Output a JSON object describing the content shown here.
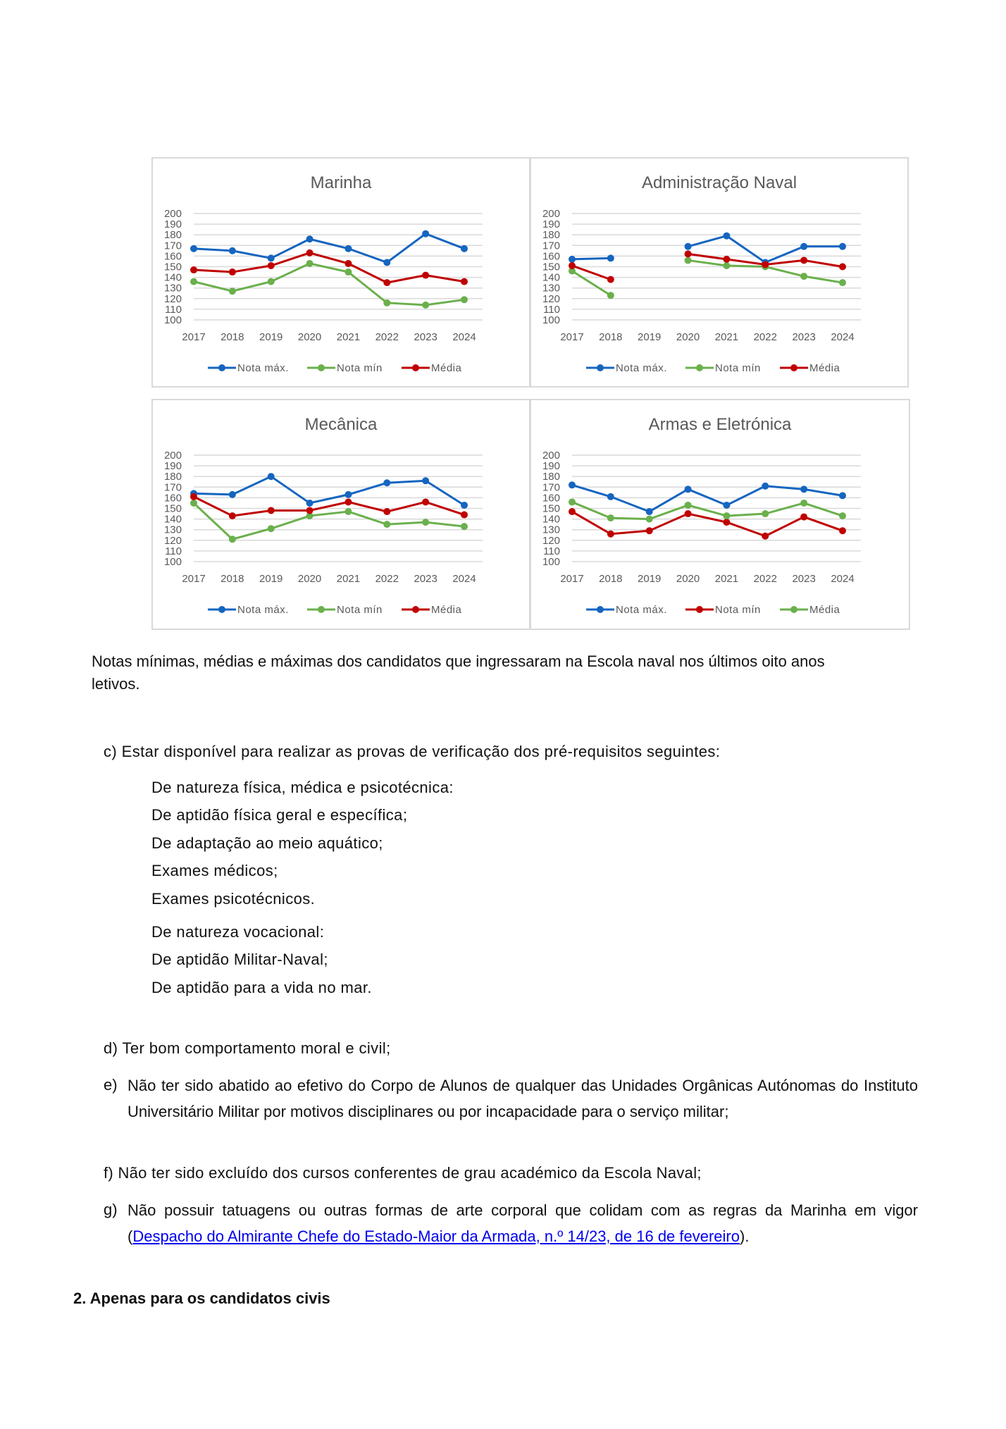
{
  "chart_data": [
    {
      "type": "line",
      "title": "Marinha",
      "categories": [
        "2017",
        "2018",
        "2019",
        "2020",
        "2021",
        "2022",
        "2023",
        "2024"
      ],
      "ylim": [
        100,
        200
      ],
      "yticks": [
        "200",
        "190",
        "180",
        "170",
        "160",
        "150",
        "140",
        "130",
        "120",
        "110",
        "100"
      ],
      "grid": true,
      "legend": "bottom",
      "series": [
        {
          "name": "Nota máx.",
          "color": "#1565c0",
          "values": [
            167,
            165,
            158,
            176,
            167,
            154,
            181,
            167
          ]
        },
        {
          "name": "Nota mín",
          "color": "#6ab04c",
          "values": [
            136,
            127,
            136,
            153,
            145,
            116,
            114,
            119
          ]
        },
        {
          "name": "Média",
          "color": "#c00000",
          "values": [
            147,
            145,
            151,
            163,
            153,
            135,
            142,
            136
          ]
        }
      ]
    },
    {
      "type": "line",
      "title": "Administração Naval",
      "categories": [
        "2017",
        "2018",
        "2019",
        "2020",
        "2021",
        "2022",
        "2023",
        "2024"
      ],
      "ylim": [
        100,
        200
      ],
      "yticks": [
        "200",
        "190",
        "180",
        "170",
        "160",
        "150",
        "140",
        "130",
        "120",
        "110",
        "100"
      ],
      "grid": true,
      "legend": "bottom",
      "series": [
        {
          "name": "Nota máx.",
          "color": "#1565c0",
          "values": [
            157,
            158,
            null,
            169,
            179,
            154,
            169,
            169
          ]
        },
        {
          "name": "Nota mín",
          "color": "#6ab04c",
          "values": [
            146,
            123,
            null,
            156,
            151,
            150,
            141,
            135
          ]
        },
        {
          "name": "Média",
          "color": "#c00000",
          "values": [
            151,
            138,
            null,
            162,
            157,
            152,
            156,
            150
          ]
        }
      ]
    },
    {
      "type": "line",
      "title": "Mecânica",
      "categories": [
        "2017",
        "2018",
        "2019",
        "2020",
        "2021",
        "2022",
        "2023",
        "2024"
      ],
      "ylim": [
        100,
        200
      ],
      "yticks": [
        "200",
        "190",
        "180",
        "170",
        "160",
        "150",
        "140",
        "130",
        "120",
        "110",
        "100"
      ],
      "grid": true,
      "legend": "bottom",
      "series": [
        {
          "name": "Nota máx.",
          "color": "#1565c0",
          "values": [
            164,
            163,
            180,
            155,
            163,
            174,
            176,
            153
          ]
        },
        {
          "name": "Nota mín",
          "color": "#6ab04c",
          "values": [
            155,
            121,
            131,
            143,
            147,
            135,
            137,
            133
          ]
        },
        {
          "name": "Média",
          "color": "#c00000",
          "values": [
            161,
            143,
            148,
            148,
            156,
            147,
            156,
            144
          ]
        }
      ]
    },
    {
      "type": "line",
      "title": "Armas e Eletrónica",
      "categories": [
        "2017",
        "2018",
        "2019",
        "2020",
        "2021",
        "2022",
        "2023",
        "2024"
      ],
      "ylim": [
        100,
        200
      ],
      "yticks": [
        "200",
        "190",
        "180",
        "170",
        "160",
        "150",
        "140",
        "130",
        "120",
        "110",
        "100"
      ],
      "grid": true,
      "legend": "bottom",
      "series": [
        {
          "name": "Nota máx.",
          "color": "#1565c0",
          "values": [
            172,
            161,
            147,
            168,
            153,
            171,
            168,
            162
          ]
        },
        {
          "name": "Nota mín",
          "color": "#c00000",
          "values": [
            147,
            126,
            129,
            145,
            137,
            124,
            142,
            129
          ]
        },
        {
          "name": "Média",
          "color": "#6ab04c",
          "values": [
            156,
            141,
            140,
            153,
            143,
            145,
            155,
            143
          ]
        }
      ]
    }
  ],
  "caption": {
    "line1": "Notas mínimas, médias e máximas dos candidatos que ingressaram na Escola naval nos últimos oito anos",
    "line2": "letivos."
  },
  "items": {
    "c": "c) Estar disponível para realizar as provas de verificação dos pré-requisitos seguintes:",
    "c_sub": [
      "De natureza física, médica e psicotécnica:",
      "De aptidão física geral e específica;",
      "De adaptação ao meio aquático;",
      "Exames médicos;",
      "Exames psicotécnicos.",
      "De natureza vocacional:",
      "De aptidão Militar-Naval;",
      "De aptidão para a vida no mar."
    ],
    "d": "d) Ter bom comportamento moral e civil;",
    "e_label": "e)",
    "e": "Não ter sido abatido ao efetivo do Corpo de Alunos de qualquer das Unidades Orgânicas Autónomas do Instituto Universitário Militar por motivos disciplinares ou por incapacidade para o serviço militar;",
    "f": "f) Não ter sido excluído dos cursos conferentes de grau académico da Escola Naval;",
    "g_label": "g)",
    "g_pre": "Não possuir tatuagens ou outras formas de arte corporal que colidam com as regras da Marinha em vigor (",
    "g_link": "Despacho do Almirante Chefe do Estado-Maior da Armada, n.º 14/23, de 16 de fevereiro",
    "g_post": ")."
  },
  "section2": "2. Apenas para os candidatos civis"
}
